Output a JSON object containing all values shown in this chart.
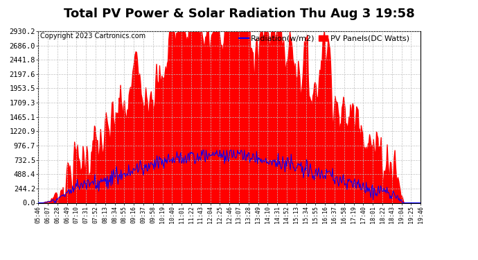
{
  "title": "Total PV Power & Solar Radiation Thu Aug 3 19:58",
  "copyright": "Copyright 2023 Cartronics.com",
  "legend_radiation": "Radiation(w/m2)",
  "legend_panels": "PV Panels(DC Watts)",
  "y_max": 2930.2,
  "y_ticks": [
    0.0,
    244.2,
    488.4,
    732.5,
    976.7,
    1220.9,
    1465.1,
    1709.3,
    1953.5,
    2197.6,
    2441.8,
    2686.0,
    2930.2
  ],
  "x_labels": [
    "05:46",
    "06:07",
    "06:28",
    "06:49",
    "07:10",
    "07:31",
    "07:52",
    "08:13",
    "08:34",
    "08:55",
    "09:16",
    "09:37",
    "09:58",
    "10:19",
    "10:40",
    "11:01",
    "11:22",
    "11:43",
    "12:04",
    "12:25",
    "12:46",
    "13:07",
    "13:28",
    "13:49",
    "14:10",
    "14:31",
    "14:52",
    "15:13",
    "15:34",
    "15:55",
    "16:16",
    "16:37",
    "16:58",
    "17:19",
    "17:40",
    "18:01",
    "18:22",
    "18:43",
    "19:04",
    "19:25",
    "19:46"
  ],
  "background_color": "#ffffff",
  "fill_color": "#ff0000",
  "line_color": "#0000ff",
  "grid_color": "#c0c0c0",
  "title_fontsize": 13,
  "copyright_fontsize": 7,
  "tick_fontsize": 6,
  "y_tick_fontsize": 7.5,
  "legend_fontsize": 8
}
